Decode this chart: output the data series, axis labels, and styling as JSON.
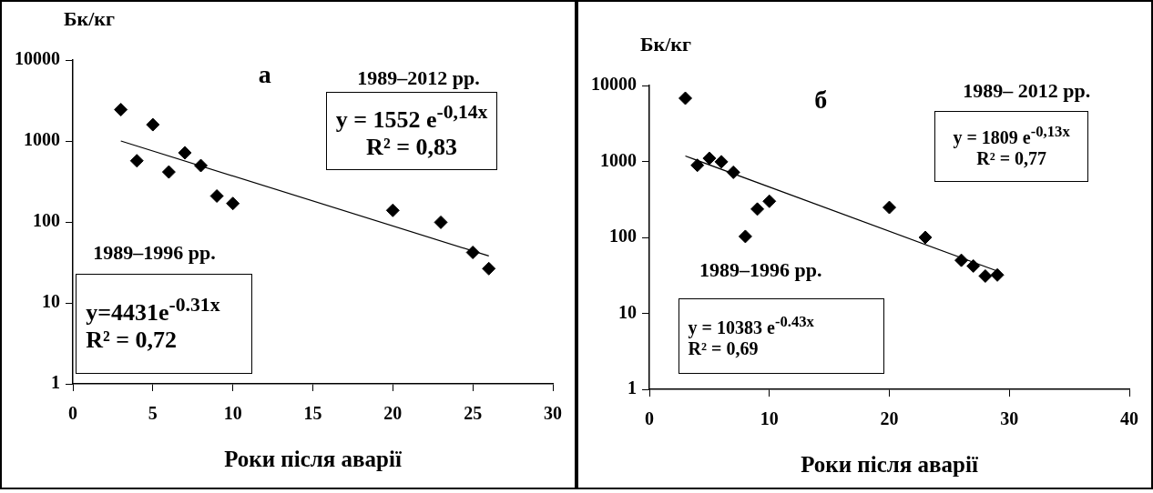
{
  "chart_data": [
    {
      "type": "scatter",
      "title": "а",
      "ylabel": "Бк/кг",
      "xlabel": "Роки після аварії",
      "xlim": [
        0,
        30
      ],
      "xticks": [
        0,
        5,
        10,
        15,
        20,
        25,
        30
      ],
      "ylim": [
        1,
        10000
      ],
      "yticks": [
        1,
        10,
        100,
        1000,
        10000
      ],
      "log": "y",
      "grid": false,
      "legend": false,
      "marker": "diamond",
      "series": [
        {
          "color": "#000000",
          "x": [
            3,
            4,
            5,
            6,
            7,
            8,
            9,
            10,
            20,
            23,
            25,
            26
          ],
          "values": [
            2440,
            570,
            1590,
            414,
            715,
            497,
            209,
            169,
            139,
            99,
            42,
            26.5
          ]
        },
        {
          "type": "line",
          "color": "#000000",
          "marker": "none",
          "x": [
            3,
            26
          ],
          "values": [
            1000,
            38
          ]
        }
      ],
      "annotations": [
        "1989–2012 рр.",
        "y = 1552 e$^{-0,14x}$",
        "R² = 0,83",
        "1989–1996 рр.",
        "y=4431e$^{-0.31x}$",
        "R² = 0,72"
      ]
    },
    {
      "type": "scatter",
      "title": "б",
      "ylabel": "Бк/кг",
      "xlabel": "Роки після аварії",
      "xlim": [
        0,
        40
      ],
      "xticks": [
        0,
        10,
        20,
        30,
        40
      ],
      "ylim": [
        1,
        10000
      ],
      "yticks": [
        1,
        10,
        100,
        1000,
        10000
      ],
      "log": "y",
      "grid": false,
      "legend": false,
      "marker": "diamond",
      "series": [
        {
          "color": "#000000",
          "x": [
            3,
            4,
            5,
            6,
            7,
            8,
            9,
            10,
            20,
            23,
            26,
            27,
            28,
            29
          ],
          "values": [
            6800,
            890,
            1100,
            990,
            720,
            103,
            236,
            299,
            248,
            100,
            50,
            42,
            31,
            32
          ]
        },
        {
          "type": "line",
          "color": "#000000",
          "marker": "none",
          "x": [
            3,
            29
          ],
          "values": [
            1180,
            36
          ]
        }
      ],
      "annotations": [
        "1989– 2012 рр.",
        "y = 1809 e$^{-0,13x}$",
        "R² = 0,77",
        "1989–1996 рр.",
        "y = 10383 e$^{-0.43x}$",
        "R² = 0,69"
      ]
    }
  ]
}
